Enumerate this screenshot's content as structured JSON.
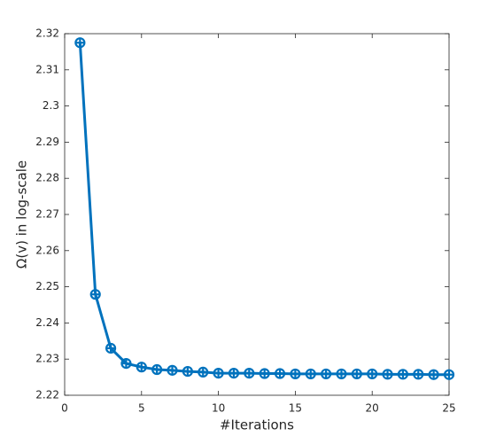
{
  "chart_data": {
    "type": "line",
    "xlabel": "#Iterations",
    "ylabel": "Ω(v) in log-scale",
    "x": [
      1,
      2,
      3,
      4,
      5,
      6,
      7,
      8,
      9,
      10,
      11,
      12,
      13,
      14,
      15,
      16,
      17,
      18,
      19,
      20,
      21,
      22,
      23,
      24,
      25
    ],
    "series": [
      {
        "color": "#0072bd",
        "values": [
          2.3175,
          2.2479,
          2.233,
          2.2288,
          2.2278,
          2.2271,
          2.2269,
          2.2266,
          2.2264,
          2.2261,
          2.2261,
          2.2261,
          2.226,
          2.226,
          2.2259,
          2.2259,
          2.2259,
          2.2259,
          2.2259,
          2.2259,
          2.2258,
          2.2258,
          2.2258,
          2.2257,
          2.2257
        ]
      }
    ],
    "xlim": [
      0,
      25
    ],
    "xticks": [
      0,
      5,
      10,
      15,
      20,
      25
    ],
    "ylim": [
      2.22,
      2.32
    ],
    "yticks": [
      2.22,
      2.23,
      2.24,
      2.25,
      2.26,
      2.27,
      2.28,
      2.29,
      2.3,
      2.31,
      2.32
    ]
  }
}
